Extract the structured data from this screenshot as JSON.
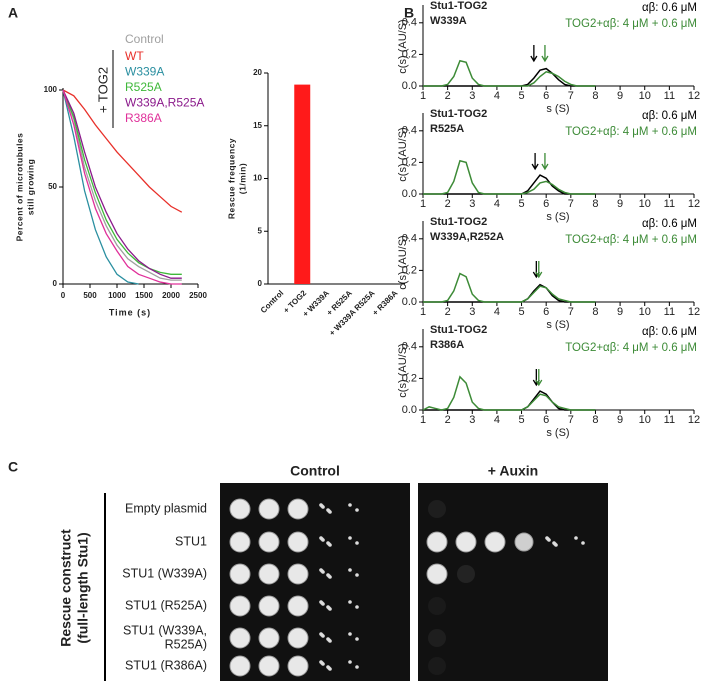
{
  "panels": [
    "A",
    "B",
    "C"
  ],
  "chart_data": [
    {
      "type": "line",
      "xlabel": "Time (s)",
      "ylabel": [
        "Percent of microtubules",
        "still growing"
      ],
      "legend_title": "+ TOG2",
      "x": [
        0,
        200,
        400,
        600,
        800,
        1000,
        1200,
        1400,
        1600,
        1800,
        2000,
        2200
      ],
      "series": [
        {
          "name": "Control",
          "color": "#a0a0a0",
          "values": [
            100,
            85,
            60,
            43,
            30,
            20,
            13,
            9,
            6,
            3,
            2,
            2
          ]
        },
        {
          "name": "WT",
          "color": "#e8302a",
          "values": [
            100,
            97,
            90,
            82,
            75,
            68,
            62,
            56,
            50,
            45,
            40,
            37
          ]
        },
        {
          "name": "W339A",
          "color": "#2a8fa0",
          "values": [
            100,
            76,
            48,
            28,
            14,
            5,
            1,
            0,
            null,
            null,
            null,
            null
          ]
        },
        {
          "name": "R525A",
          "color": "#3fb83a",
          "values": [
            100,
            86,
            64,
            47,
            33,
            23,
            16,
            11,
            8,
            6,
            5,
            5
          ]
        },
        {
          "name": "W339A,R525A",
          "color": "#8b1a8b",
          "values": [
            100,
            88,
            68,
            50,
            37,
            26,
            18,
            12,
            8,
            5,
            3,
            3
          ]
        },
        {
          "name": "R386A",
          "color": "#e0309a",
          "values": [
            100,
            82,
            57,
            39,
            26,
            17,
            9,
            5,
            3,
            1,
            0,
            0
          ]
        }
      ],
      "xlim": [
        0,
        2500
      ],
      "xticks": [
        0,
        500,
        1000,
        1500,
        2000,
        2500
      ],
      "ylim": [
        0,
        100
      ],
      "yticks": [
        0,
        50,
        100
      ]
    },
    {
      "type": "bar",
      "ylabel": [
        "Rescue frequency",
        "(1/min)"
      ],
      "color": "#ff1a1a",
      "categories": [
        "Control",
        "+ TOG2",
        "+ W339A",
        "+ R525A",
        "+ W339A R525A",
        "+ R386A"
      ],
      "values": [
        0,
        18.9,
        0,
        0,
        0,
        0
      ],
      "ylim": [
        0,
        20
      ],
      "yticks": [
        0,
        5,
        10,
        15,
        20
      ]
    },
    {
      "type": "line",
      "title": [
        "Stu1-TOG2",
        "W339A"
      ],
      "xlabel": "s (S)",
      "ylabel": "c(s) (AU/S)",
      "x": [
        1,
        1.25,
        1.5,
        1.75,
        2,
        2.25,
        2.5,
        2.75,
        3,
        3.25,
        3.5,
        3.75,
        4,
        4.25,
        4.5,
        4.75,
        5,
        5.25,
        5.5,
        5.75,
        6,
        6.25,
        6.5,
        6.75,
        7,
        7.25,
        7.5,
        7.75,
        8
      ],
      "series": [
        {
          "name": "αβ: 0.6 μM",
          "color": "#000000",
          "values": [
            0,
            0,
            0,
            0,
            0,
            0,
            0,
            0,
            0,
            0,
            0,
            0,
            0,
            0,
            0,
            0,
            0,
            0.01,
            0.05,
            0.1,
            0.11,
            0.08,
            0.04,
            0.01,
            0,
            0,
            0,
            0,
            0
          ]
        },
        {
          "name": "TOG2+αβ: 4 μM + 0.6 μM",
          "color": "#3d8b37",
          "values": [
            0,
            0,
            0,
            0,
            0.01,
            0.06,
            0.16,
            0.15,
            0.05,
            0.01,
            0,
            0,
            0,
            0,
            0,
            0,
            0,
            0,
            0.02,
            0.06,
            0.09,
            0.08,
            0.06,
            0.03,
            0.01,
            0,
            0,
            0,
            0
          ]
        }
      ],
      "arrows": [
        {
          "x": 5.5,
          "color": "#000000"
        },
        {
          "x": 5.95,
          "color": "#3d8b37"
        }
      ],
      "xlim": [
        1,
        12
      ],
      "xticks": [
        1,
        2,
        3,
        4,
        5,
        6,
        7,
        8,
        9,
        10,
        11,
        12
      ],
      "ylim": [
        0,
        0.5
      ],
      "yticks": [
        {
          "value": 0,
          "label": "0.0"
        },
        0.2,
        0.4
      ]
    },
    {
      "type": "line",
      "title": [
        "Stu1-TOG2",
        "R525A"
      ],
      "xlabel": "s (S)",
      "ylabel": "c(s) (AU/S)",
      "x": [
        1,
        1.25,
        1.5,
        1.75,
        2,
        2.25,
        2.5,
        2.75,
        3,
        3.25,
        3.5,
        3.75,
        4,
        4.25,
        4.5,
        4.75,
        5,
        5.25,
        5.5,
        5.75,
        6,
        6.25,
        6.5,
        6.75,
        7,
        7.25,
        7.5,
        7.75,
        8
      ],
      "series": [
        {
          "name": "αβ: 0.6 μM",
          "color": "#000000",
          "values": [
            0,
            0,
            0,
            0,
            0,
            0,
            0,
            0,
            0,
            0,
            0,
            0,
            0,
            0,
            0,
            0,
            0,
            0.02,
            0.07,
            0.12,
            0.1,
            0.05,
            0.02,
            0,
            0,
            0,
            0,
            0,
            0
          ]
        },
        {
          "name": "TOG2+αβ: 4 μM + 0.6 μM",
          "color": "#3d8b37",
          "values": [
            0,
            0,
            0,
            0,
            0.01,
            0.08,
            0.21,
            0.2,
            0.07,
            0.01,
            0,
            0,
            0,
            0,
            0,
            0,
            0,
            0.01,
            0.03,
            0.07,
            0.08,
            0.06,
            0.03,
            0.01,
            0,
            0,
            0,
            0,
            0
          ]
        }
      ],
      "arrows": [
        {
          "x": 5.55,
          "color": "#000000"
        },
        {
          "x": 5.95,
          "color": "#3d8b37"
        }
      ],
      "xlim": [
        1,
        12
      ],
      "xticks": [
        1,
        2,
        3,
        4,
        5,
        6,
        7,
        8,
        9,
        10,
        11,
        12
      ],
      "ylim": [
        0,
        0.5
      ],
      "yticks": [
        {
          "value": 0,
          "label": "0.0"
        },
        0.2,
        0.4
      ]
    },
    {
      "type": "line",
      "title": [
        "Stu1-TOG2",
        "W339A,R252A"
      ],
      "xlabel": "s (S)",
      "ylabel": "c(s) (AU/S)",
      "x": [
        1,
        1.25,
        1.5,
        1.75,
        2,
        2.25,
        2.5,
        2.75,
        3,
        3.25,
        3.5,
        3.75,
        4,
        4.25,
        4.5,
        4.75,
        5,
        5.25,
        5.5,
        5.75,
        6,
        6.25,
        6.5,
        6.75,
        7,
        7.25,
        7.5,
        7.75,
        8
      ],
      "series": [
        {
          "name": "αβ: 0.6 μM",
          "color": "#000000",
          "values": [
            0,
            0,
            0,
            0,
            0,
            0,
            0,
            0,
            0,
            0,
            0,
            0,
            0,
            0,
            0,
            0,
            0,
            0.02,
            0.07,
            0.11,
            0.09,
            0.04,
            0.01,
            0,
            0,
            0,
            0,
            0,
            0
          ]
        },
        {
          "name": "TOG2+αβ: 4 μM + 0.6 μM",
          "color": "#3d8b37",
          "values": [
            0,
            0,
            0,
            0,
            0.01,
            0.07,
            0.18,
            0.16,
            0.05,
            0.01,
            0,
            0,
            0,
            0,
            0,
            0,
            0,
            0.02,
            0.06,
            0.1,
            0.09,
            0.05,
            0.02,
            0.01,
            0,
            0,
            0,
            0,
            0
          ]
        }
      ],
      "arrows": [
        {
          "x": 5.6,
          "color": "#000000"
        },
        {
          "x": 5.7,
          "color": "#3d8b37"
        }
      ],
      "xlim": [
        1,
        12
      ],
      "xticks": [
        1,
        2,
        3,
        4,
        5,
        6,
        7,
        8,
        9,
        10,
        11,
        12
      ],
      "ylim": [
        0,
        0.5
      ],
      "yticks": [
        {
          "value": 0,
          "label": "0.0"
        },
        0.2,
        0.4
      ]
    },
    {
      "type": "line",
      "title": [
        "Stu1-TOG2",
        "R386A"
      ],
      "xlabel": "s (S)",
      "ylabel": "c(s) (AU/S)",
      "x": [
        1,
        1.25,
        1.5,
        1.75,
        2,
        2.25,
        2.5,
        2.75,
        3,
        3.25,
        3.5,
        3.75,
        4,
        4.25,
        4.5,
        4.75,
        5,
        5.25,
        5.5,
        5.75,
        6,
        6.25,
        6.5,
        6.75,
        7,
        7.25,
        7.5,
        7.75,
        8
      ],
      "series": [
        {
          "name": "αβ: 0.6 μM",
          "color": "#000000",
          "values": [
            0,
            0,
            0,
            0,
            0,
            0,
            0,
            0,
            0,
            0,
            0,
            0,
            0,
            0,
            0,
            0,
            0,
            0.02,
            0.07,
            0.12,
            0.1,
            0.05,
            0.01,
            0,
            0,
            0,
            0,
            0,
            0
          ]
        },
        {
          "name": "TOG2+αβ: 4 μM + 0.6 μM",
          "color": "#3d8b37",
          "values": [
            0,
            0.02,
            0.01,
            0,
            0.01,
            0.08,
            0.21,
            0.17,
            0.05,
            0.01,
            0,
            0,
            0,
            0,
            0,
            0,
            0,
            0.02,
            0.06,
            0.1,
            0.09,
            0.05,
            0.02,
            0.01,
            0,
            0,
            0,
            0,
            0
          ]
        }
      ],
      "arrows": [
        {
          "x": 5.6,
          "color": "#000000"
        },
        {
          "x": 5.7,
          "color": "#3d8b37"
        }
      ],
      "xlim": [
        1,
        12
      ],
      "xticks": [
        1,
        2,
        3,
        4,
        5,
        6,
        7,
        8,
        9,
        10,
        11,
        12
      ],
      "ylim": [
        0,
        0.5
      ],
      "yticks": [
        {
          "value": 0,
          "label": "0.0"
        },
        0.2,
        0.4
      ]
    }
  ],
  "plates": {
    "columns": [
      "Control",
      "+ Auxin"
    ],
    "ylabel": [
      "Rescue construct",
      "(full-length Stu1)"
    ],
    "rows": [
      [
        "Empty plasmid"
      ],
      [
        "STU1"
      ],
      [
        "STU1 (W339A)"
      ],
      [
        "STU1 (R525A)"
      ],
      [
        "STU1 (W339A,",
        "R525A)"
      ],
      [
        "STU1 (R386A)"
      ]
    ]
  }
}
